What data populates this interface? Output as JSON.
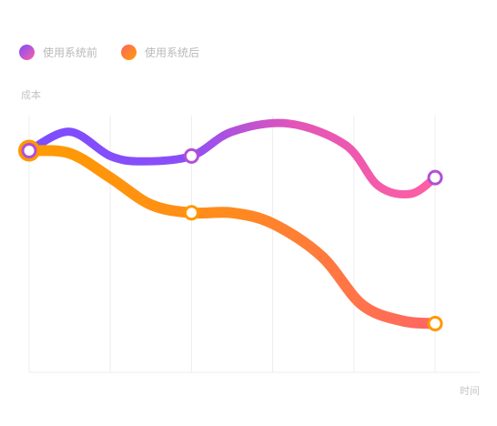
{
  "chart_data": {
    "type": "line",
    "title": "",
    "xlabel": "时间",
    "ylabel": "成本",
    "x": [
      0,
      1,
      2,
      3,
      4,
      5
    ],
    "y_range": [
      0,
      100
    ],
    "grid": {
      "vertical": true,
      "horizontal": false
    },
    "legend_position": "top-left",
    "series": [
      {
        "name": "使用系统前",
        "colors": {
          "start": "#7c4dff",
          "end": "#ff5fa2",
          "marker": "#b24fd6"
        },
        "curve": [
          [
            0,
            82
          ],
          [
            0.5,
            89
          ],
          [
            1,
            80
          ],
          [
            1.4,
            78
          ],
          [
            2,
            80
          ],
          [
            2.5,
            89
          ],
          [
            3.2,
            92
          ],
          [
            3.9,
            84
          ],
          [
            4.3,
            69
          ],
          [
            4.7,
            66
          ],
          [
            5,
            72
          ]
        ],
        "markers": [
          [
            0,
            82
          ],
          [
            2,
            80
          ],
          [
            5,
            72
          ]
        ]
      },
      {
        "name": "使用系统后",
        "colors": {
          "start": "#ff9c00",
          "end": "#ff6565",
          "marker": "#ff9800"
        },
        "curve": [
          [
            0,
            82
          ],
          [
            0.5,
            81
          ],
          [
            1,
            72
          ],
          [
            1.5,
            62
          ],
          [
            2,
            59
          ],
          [
            2.5,
            59
          ],
          [
            3,
            55
          ],
          [
            3.6,
            43
          ],
          [
            4.1,
            25
          ],
          [
            4.6,
            19
          ],
          [
            5,
            18
          ]
        ],
        "markers": [
          [
            0,
            82
          ],
          [
            2,
            59
          ],
          [
            5,
            18
          ]
        ]
      }
    ]
  }
}
